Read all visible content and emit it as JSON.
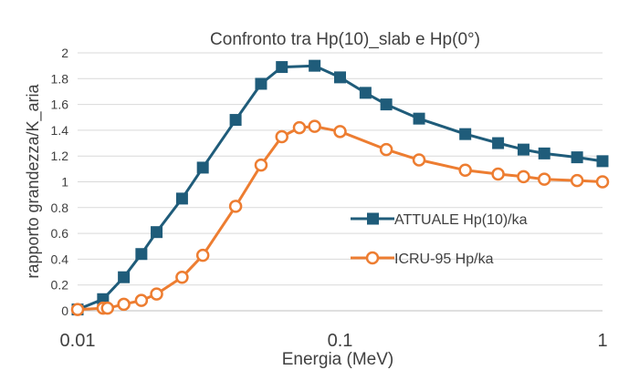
{
  "chart_data": {
    "type": "line",
    "title": "Confronto tra Hp(10)_slab e Hp(0°)",
    "xlabel": "Energia (MeV)",
    "ylabel": "rapporto grandezza/K_aria",
    "x_scale": "log",
    "xlim": [
      0.01,
      1
    ],
    "ylim": [
      0,
      2
    ],
    "x_ticks": [
      {
        "value": 0.01,
        "label": "0.01"
      },
      {
        "value": 0.1,
        "label": "0.1"
      },
      {
        "value": 1,
        "label": "1"
      }
    ],
    "y_ticks": [
      {
        "value": 0,
        "label": "0"
      },
      {
        "value": 0.2,
        "label": "0.2"
      },
      {
        "value": 0.4,
        "label": "0.4"
      },
      {
        "value": 0.6,
        "label": "0.6"
      },
      {
        "value": 0.8,
        "label": "0.8"
      },
      {
        "value": 1,
        "label": "1"
      },
      {
        "value": 1.2,
        "label": "1.2"
      },
      {
        "value": 1.4,
        "label": "1.4"
      },
      {
        "value": 1.6,
        "label": "1.6"
      },
      {
        "value": 1.8,
        "label": "1.8"
      },
      {
        "value": 2,
        "label": "2"
      }
    ],
    "grid": "horizontal",
    "legend_position": "right-middle",
    "series": [
      {
        "name": "ATTUALE Hp(10)/ka",
        "color": "#1f5c7a",
        "marker": "square",
        "points": [
          [
            0.01,
            0.01
          ],
          [
            0.0125,
            0.09
          ],
          [
            0.015,
            0.26
          ],
          [
            0.0175,
            0.44
          ],
          [
            0.02,
            0.61
          ],
          [
            0.025,
            0.87
          ],
          [
            0.03,
            1.11
          ],
          [
            0.04,
            1.48
          ],
          [
            0.05,
            1.76
          ],
          [
            0.06,
            1.89
          ],
          [
            0.08,
            1.9
          ],
          [
            0.1,
            1.81
          ],
          [
            0.125,
            1.69
          ],
          [
            0.15,
            1.6
          ],
          [
            0.2,
            1.49
          ],
          [
            0.3,
            1.37
          ],
          [
            0.4,
            1.3
          ],
          [
            0.5,
            1.25
          ],
          [
            0.6,
            1.22
          ],
          [
            0.8,
            1.19
          ],
          [
            1.0,
            1.16
          ]
        ]
      },
      {
        "name": "ICRU-95 Hp/ka",
        "color": "#ed7d31",
        "marker": "circle",
        "points": [
          [
            0.01,
            0.01
          ],
          [
            0.0125,
            0.02
          ],
          [
            0.013,
            0.02
          ],
          [
            0.015,
            0.05
          ],
          [
            0.0175,
            0.08
          ],
          [
            0.02,
            0.13
          ],
          [
            0.025,
            0.26
          ],
          [
            0.03,
            0.43
          ],
          [
            0.04,
            0.81
          ],
          [
            0.05,
            1.13
          ],
          [
            0.06,
            1.35
          ],
          [
            0.07,
            1.42
          ],
          [
            0.08,
            1.43
          ],
          [
            0.1,
            1.39
          ],
          [
            0.15,
            1.25
          ],
          [
            0.2,
            1.17
          ],
          [
            0.3,
            1.09
          ],
          [
            0.4,
            1.06
          ],
          [
            0.5,
            1.04
          ],
          [
            0.6,
            1.02
          ],
          [
            0.8,
            1.01
          ],
          [
            1.0,
            1.0
          ]
        ]
      }
    ]
  }
}
